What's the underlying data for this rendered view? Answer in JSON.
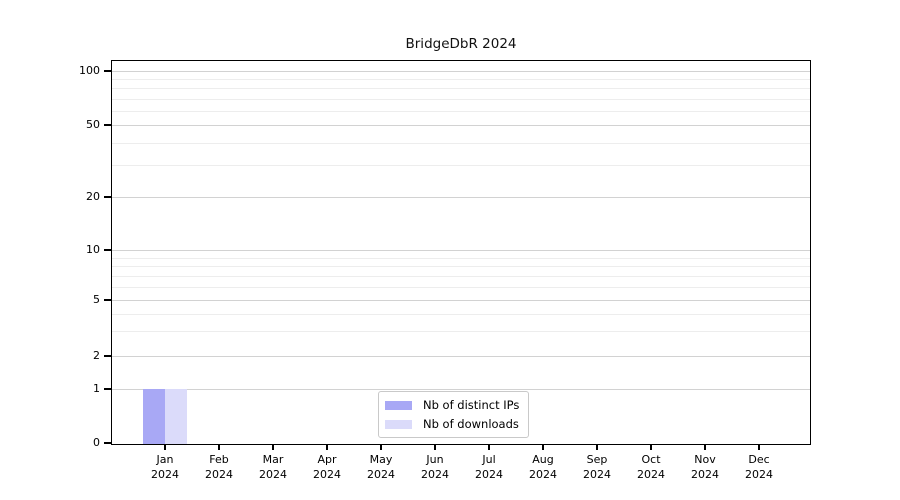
{
  "title": "BridgeDbR 2024",
  "y_axis": {
    "ticks": [
      {
        "label": "100",
        "value": 100
      },
      {
        "label": "50",
        "value": 50
      },
      {
        "label": "20",
        "value": 20
      },
      {
        "label": "10",
        "value": 10
      },
      {
        "label": "5",
        "value": 5
      },
      {
        "label": "2",
        "value": 2
      },
      {
        "label": "1",
        "value": 1
      },
      {
        "label": "0",
        "value": 0
      }
    ],
    "minor_grid_values": [
      3,
      4,
      6,
      7,
      8,
      9,
      30,
      40,
      60,
      70,
      80,
      90
    ]
  },
  "x_axis": {
    "months": [
      {
        "month": "Jan",
        "year": "2024"
      },
      {
        "month": "Feb",
        "year": "2024"
      },
      {
        "month": "Mar",
        "year": "2024"
      },
      {
        "month": "Apr",
        "year": "2024"
      },
      {
        "month": "May",
        "year": "2024"
      },
      {
        "month": "Jun",
        "year": "2024"
      },
      {
        "month": "Jul",
        "year": "2024"
      },
      {
        "month": "Aug",
        "year": "2024"
      },
      {
        "month": "Sep",
        "year": "2024"
      },
      {
        "month": "Oct",
        "year": "2024"
      },
      {
        "month": "Nov",
        "year": "2024"
      },
      {
        "month": "Dec",
        "year": "2024"
      }
    ]
  },
  "legend": {
    "items": [
      {
        "label": "Nb of distinct IPs",
        "color": "#a8a8f5"
      },
      {
        "label": "Nb of downloads",
        "color": "#dbdbfa"
      }
    ]
  },
  "colors": {
    "distinct_ips": "#a8a8f5",
    "downloads": "#dbdbfa",
    "major_grid": "#d2d2d2",
    "minor_grid": "#ededed",
    "axis": "#000000"
  },
  "chart_data": {
    "type": "bar",
    "title": "BridgeDbR 2024",
    "categories": [
      "Jan 2024",
      "Feb 2024",
      "Mar 2024",
      "Apr 2024",
      "May 2024",
      "Jun 2024",
      "Jul 2024",
      "Aug 2024",
      "Sep 2024",
      "Oct 2024",
      "Nov 2024",
      "Dec 2024"
    ],
    "series": [
      {
        "name": "Nb of distinct IPs",
        "color": "#a8a8f5",
        "values": [
          1,
          0,
          0,
          0,
          0,
          0,
          0,
          0,
          0,
          0,
          0,
          0
        ]
      },
      {
        "name": "Nb of downloads",
        "color": "#dbdbfa",
        "values": [
          1,
          0,
          0,
          0,
          0,
          0,
          0,
          0,
          0,
          0,
          0,
          0
        ]
      }
    ],
    "xlabel": "",
    "ylabel": "",
    "y_scale": "log (0 shown at baseline)",
    "y_ticks": [
      0,
      1,
      2,
      5,
      10,
      20,
      50,
      100
    ],
    "ylim": [
      0,
      130
    ],
    "grid": "horizontal major + log minor",
    "legend_position": "lower center"
  }
}
